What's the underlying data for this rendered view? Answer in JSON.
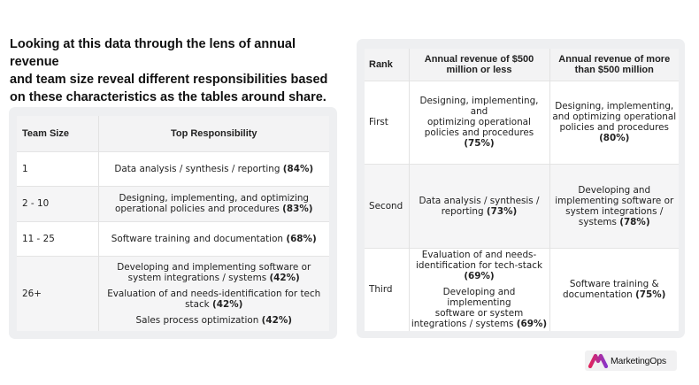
{
  "intro": {
    "line1": "Looking at this data through the lens of annual revenue",
    "line2": "and team size reveal different responsibilities based",
    "line3": "on these characteristics as the tables around share."
  },
  "team_table": {
    "headers": {
      "size": "Team Size",
      "responsibility": "Top Responsibility"
    },
    "rows": [
      {
        "size": "1",
        "items": [
          {
            "text": "Data analysis / synthesis / reporting",
            "pct": "(84%)"
          }
        ]
      },
      {
        "size": "2 - 10",
        "items": [
          {
            "text1": "Designing, implementing, and optimizing",
            "text2": "operational policies and procedures",
            "pct": "(83%)"
          }
        ]
      },
      {
        "size": "11 - 25",
        "items": [
          {
            "text": "Software training and documentation",
            "pct": "(68%)"
          }
        ]
      },
      {
        "size": "26+",
        "items": [
          {
            "text1": "Developing and implementing software or",
            "text2": "system integrations / systems",
            "pct": "(42%)"
          },
          {
            "text1": "Evaluation of and needs-identification for tech",
            "text2": "stack",
            "pct": "(42%)"
          },
          {
            "text": "Sales process optimization",
            "pct": "(42%)"
          }
        ]
      }
    ]
  },
  "revenue_table": {
    "headers": {
      "rank": "Rank",
      "small_l1": "Annual revenue of $500",
      "small_l2": "million or less",
      "large_l1": "Annual revenue of more",
      "large_l2": "than $500 million"
    },
    "rows": [
      {
        "rank": "First",
        "small": {
          "l1": "Designing, implementing, and",
          "l2": "optimizing operational",
          "l3": "policies and procedures",
          "pct": "(75%)"
        },
        "large": {
          "l1": "Designing, implementing,",
          "l2": "and optimizing operational",
          "l3": "policies and procedures",
          "pct": "(80%)"
        }
      },
      {
        "rank": "Second",
        "small": {
          "l1": "Data analysis / synthesis /",
          "l2": "reporting",
          "pct": "(73%)"
        },
        "large": {
          "l1": "Developing and",
          "l2": "implementing software or",
          "l3": "system integrations /",
          "l4": "systems",
          "pct": "(78%)"
        }
      },
      {
        "rank": "Third",
        "small_items": [
          {
            "l1": "Evaluation of and needs-",
            "l2": "identification for tech-stack",
            "pct": "(69%)"
          },
          {
            "l1": "Developing and implementing",
            "l2": "software or system",
            "l3": "integrations / systems",
            "pct": "(69%)"
          }
        ],
        "large": {
          "l1": "Software training &",
          "l2": "documentation",
          "pct": "(75%)"
        }
      }
    ]
  },
  "brand": {
    "name": "MarketingOps",
    "logo_colors": [
      "#e0245e",
      "#8a35c9"
    ]
  }
}
